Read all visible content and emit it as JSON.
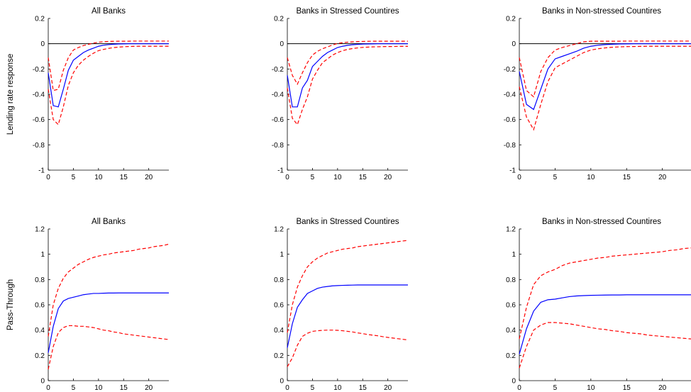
{
  "chart_data": [
    {
      "type": "line",
      "title": "All Banks",
      "ylabel": "Lending rate response",
      "xlim": [
        0,
        24
      ],
      "ylim": [
        -1,
        0.2
      ],
      "xticks": [
        0,
        5,
        10,
        15,
        20
      ],
      "yticks": [
        -1,
        -0.8,
        -0.6,
        -0.4,
        -0.2,
        0,
        0.2
      ],
      "zero_line": true,
      "x": [
        0,
        1,
        2,
        3,
        4,
        5,
        6,
        7,
        8,
        9,
        10,
        11,
        12,
        13,
        14,
        15,
        16,
        17,
        18,
        19,
        20,
        21,
        22,
        23,
        24
      ],
      "series": [
        {
          "values": [
            -0.23,
            -0.49,
            -0.5,
            -0.36,
            -0.21,
            -0.13,
            -0.1,
            -0.07,
            -0.05,
            -0.035,
            -0.02,
            -0.012,
            -0.007,
            -0.004,
            -0.002,
            -0.001,
            0,
            0,
            0,
            0,
            0,
            0,
            0,
            0,
            0
          ],
          "color": "#0000ff",
          "style": "solid"
        },
        {
          "values": [
            -0.11,
            -0.37,
            -0.36,
            -0.21,
            -0.11,
            -0.05,
            -0.03,
            -0.015,
            -0.005,
            0.005,
            0.012,
            0.016,
            0.018,
            0.019,
            0.02,
            0.02,
            0.02,
            0.021,
            0.021,
            0.021,
            0.021,
            0.021,
            0.021,
            0.021,
            0.021
          ],
          "color": "#ff0000",
          "style": "dashed"
        },
        {
          "values": [
            -0.36,
            -0.6,
            -0.64,
            -0.5,
            -0.33,
            -0.23,
            -0.17,
            -0.13,
            -0.1,
            -0.075,
            -0.055,
            -0.045,
            -0.037,
            -0.031,
            -0.027,
            -0.024,
            -0.022,
            -0.021,
            -0.02,
            -0.02,
            -0.02,
            -0.02,
            -0.02,
            -0.02,
            -0.02
          ],
          "color": "#ff0000",
          "style": "dashed"
        }
      ]
    },
    {
      "type": "line",
      "title": "Banks in Stressed Countires",
      "xlim": [
        0,
        24
      ],
      "ylim": [
        -1,
        0.2
      ],
      "xticks": [
        0,
        5,
        10,
        15,
        20
      ],
      "yticks": [
        -1,
        -0.8,
        -0.6,
        -0.4,
        -0.2,
        0,
        0.2
      ],
      "zero_line": true,
      "x": [
        0,
        1,
        2,
        3,
        4,
        5,
        6,
        7,
        8,
        9,
        10,
        11,
        12,
        13,
        14,
        15,
        16,
        17,
        18,
        19,
        20,
        21,
        22,
        23,
        24
      ],
      "series": [
        {
          "values": [
            -0.25,
            -0.5,
            -0.5,
            -0.35,
            -0.29,
            -0.18,
            -0.14,
            -0.1,
            -0.07,
            -0.05,
            -0.03,
            -0.02,
            -0.013,
            -0.008,
            -0.005,
            -0.003,
            -0.002,
            -0.001,
            0,
            0,
            0,
            0,
            0,
            0,
            0
          ],
          "color": "#0000ff",
          "style": "solid"
        },
        {
          "values": [
            -0.11,
            -0.25,
            -0.32,
            -0.23,
            -0.15,
            -0.09,
            -0.06,
            -0.04,
            -0.025,
            -0.01,
            0.002,
            0.008,
            0.012,
            0.015,
            0.017,
            0.018,
            0.019,
            0.02,
            0.02,
            0.02,
            0.02,
            0.02,
            0.02,
            0.02,
            0.02
          ],
          "color": "#ff0000",
          "style": "dashed"
        },
        {
          "values": [
            -0.35,
            -0.59,
            -0.64,
            -0.52,
            -0.42,
            -0.28,
            -0.21,
            -0.15,
            -0.12,
            -0.09,
            -0.07,
            -0.055,
            -0.045,
            -0.038,
            -0.033,
            -0.029,
            -0.027,
            -0.025,
            -0.024,
            -0.023,
            -0.022,
            -0.022,
            -0.021,
            -0.021,
            -0.021
          ],
          "color": "#ff0000",
          "style": "dashed"
        }
      ]
    },
    {
      "type": "line",
      "title": "Banks in Non-stressed Countires",
      "xlim": [
        0,
        24
      ],
      "ylim": [
        -1,
        0.2
      ],
      "xticks": [
        0,
        5,
        10,
        15,
        20
      ],
      "yticks": [
        -1,
        -0.8,
        -0.6,
        -0.4,
        -0.2,
        0,
        0.2
      ],
      "zero_line": true,
      "x": [
        0,
        1,
        2,
        3,
        4,
        5,
        6,
        7,
        8,
        9,
        10,
        11,
        12,
        13,
        14,
        15,
        16,
        17,
        18,
        19,
        20,
        21,
        22,
        23,
        24
      ],
      "series": [
        {
          "values": [
            -0.22,
            -0.48,
            -0.52,
            -0.36,
            -0.2,
            -0.12,
            -0.1,
            -0.08,
            -0.06,
            -0.035,
            -0.02,
            -0.012,
            -0.007,
            -0.004,
            -0.002,
            -0.001,
            0,
            0,
            0,
            0,
            0,
            0,
            0,
            0,
            0
          ],
          "color": "#0000ff",
          "style": "solid"
        },
        {
          "values": [
            -0.11,
            -0.37,
            -0.42,
            -0.22,
            -0.11,
            -0.05,
            -0.03,
            -0.015,
            0,
            0.015,
            0.02,
            0.02,
            0.02,
            0.02,
            0.02,
            0.021,
            0.021,
            0.021,
            0.021,
            0.021,
            0.021,
            0.021,
            0.021,
            0.021,
            0.021
          ],
          "color": "#ff0000",
          "style": "dashed"
        },
        {
          "values": [
            -0.34,
            -0.58,
            -0.68,
            -0.48,
            -0.3,
            -0.19,
            -0.16,
            -0.13,
            -0.1,
            -0.07,
            -0.05,
            -0.04,
            -0.033,
            -0.028,
            -0.025,
            -0.023,
            -0.022,
            -0.021,
            -0.02,
            -0.02,
            -0.02,
            -0.02,
            -0.02,
            -0.02,
            -0.02
          ],
          "color": "#ff0000",
          "style": "dashed"
        }
      ]
    },
    {
      "type": "line",
      "title": "All Banks",
      "ylabel": "Pass-Through",
      "xlim": [
        0,
        24
      ],
      "ylim": [
        0,
        1.2
      ],
      "xticks": [
        0,
        5,
        10,
        15,
        20
      ],
      "yticks": [
        0,
        0.2,
        0.4,
        0.6,
        0.8,
        1,
        1.2
      ],
      "zero_line": false,
      "x": [
        0,
        1,
        2,
        3,
        4,
        5,
        6,
        7,
        8,
        9,
        10,
        11,
        12,
        13,
        14,
        15,
        16,
        17,
        18,
        19,
        20,
        21,
        22,
        23,
        24
      ],
      "series": [
        {
          "values": [
            0.22,
            0.43,
            0.57,
            0.63,
            0.65,
            0.66,
            0.67,
            0.68,
            0.685,
            0.69,
            0.69,
            0.692,
            0.693,
            0.693,
            0.694,
            0.694,
            0.694,
            0.694,
            0.694,
            0.694,
            0.694,
            0.694,
            0.694,
            0.694,
            0.694
          ],
          "color": "#0000ff",
          "style": "solid"
        },
        {
          "values": [
            0.35,
            0.6,
            0.73,
            0.81,
            0.86,
            0.89,
            0.92,
            0.94,
            0.96,
            0.975,
            0.985,
            0.995,
            1.0,
            1.01,
            1.015,
            1.02,
            1.025,
            1.03,
            1.04,
            1.045,
            1.05,
            1.06,
            1.065,
            1.07,
            1.08
          ],
          "color": "#ff0000",
          "style": "dashed"
        },
        {
          "values": [
            0.09,
            0.27,
            0.38,
            0.42,
            0.435,
            0.435,
            0.43,
            0.43,
            0.425,
            0.42,
            0.41,
            0.4,
            0.395,
            0.385,
            0.38,
            0.37,
            0.365,
            0.36,
            0.355,
            0.35,
            0.345,
            0.34,
            0.335,
            0.33,
            0.325
          ],
          "color": "#ff0000",
          "style": "dashed"
        }
      ]
    },
    {
      "type": "line",
      "title": "Banks in Stressed Countires",
      "xlim": [
        0,
        24
      ],
      "ylim": [
        0,
        1.2
      ],
      "xticks": [
        0,
        5,
        10,
        15,
        20
      ],
      "yticks": [
        0,
        0.2,
        0.4,
        0.6,
        0.8,
        1,
        1.2
      ],
      "zero_line": false,
      "x": [
        0,
        1,
        2,
        3,
        4,
        5,
        6,
        7,
        8,
        9,
        10,
        11,
        12,
        13,
        14,
        15,
        16,
        17,
        18,
        19,
        20,
        21,
        22,
        23,
        24
      ],
      "series": [
        {
          "values": [
            0.26,
            0.45,
            0.58,
            0.64,
            0.69,
            0.71,
            0.73,
            0.74,
            0.745,
            0.75,
            0.752,
            0.754,
            0.755,
            0.756,
            0.757,
            0.757,
            0.757,
            0.757,
            0.757,
            0.757,
            0.757,
            0.757,
            0.757,
            0.757,
            0.757
          ],
          "color": "#0000ff",
          "style": "solid"
        },
        {
          "values": [
            0.38,
            0.6,
            0.74,
            0.83,
            0.9,
            0.94,
            0.97,
            0.99,
            1.01,
            1.02,
            1.03,
            1.04,
            1.045,
            1.05,
            1.06,
            1.065,
            1.07,
            1.075,
            1.08,
            1.085,
            1.09,
            1.095,
            1.1,
            1.105,
            1.11
          ],
          "color": "#ff0000",
          "style": "dashed"
        },
        {
          "values": [
            0.11,
            0.18,
            0.28,
            0.35,
            0.375,
            0.39,
            0.395,
            0.398,
            0.4,
            0.4,
            0.398,
            0.395,
            0.39,
            0.385,
            0.378,
            0.372,
            0.365,
            0.36,
            0.355,
            0.348,
            0.342,
            0.337,
            0.332,
            0.327,
            0.322
          ],
          "color": "#ff0000",
          "style": "dashed"
        }
      ]
    },
    {
      "type": "line",
      "title": "Banks in Non-stressed Countires",
      "xlim": [
        0,
        24
      ],
      "ylim": [
        0,
        1.2
      ],
      "xticks": [
        0,
        5,
        10,
        15,
        20
      ],
      "yticks": [
        0,
        0.2,
        0.4,
        0.6,
        0.8,
        1,
        1.2
      ],
      "zero_line": false,
      "x": [
        0,
        1,
        2,
        3,
        4,
        5,
        6,
        7,
        8,
        9,
        10,
        11,
        12,
        13,
        14,
        15,
        16,
        17,
        18,
        19,
        20,
        21,
        22,
        23,
        24
      ],
      "series": [
        {
          "values": [
            0.21,
            0.41,
            0.55,
            0.62,
            0.64,
            0.645,
            0.655,
            0.665,
            0.67,
            0.673,
            0.675,
            0.676,
            0.677,
            0.678,
            0.678,
            0.679,
            0.679,
            0.679,
            0.679,
            0.679,
            0.679,
            0.679,
            0.679,
            0.679,
            0.679
          ],
          "color": "#0000ff",
          "style": "solid"
        },
        {
          "values": [
            0.33,
            0.58,
            0.76,
            0.83,
            0.86,
            0.88,
            0.91,
            0.93,
            0.94,
            0.95,
            0.96,
            0.97,
            0.975,
            0.985,
            0.99,
            0.995,
            1.0,
            1.005,
            1.01,
            1.015,
            1.02,
            1.03,
            1.035,
            1.045,
            1.05
          ],
          "color": "#ff0000",
          "style": "dashed"
        },
        {
          "values": [
            0.1,
            0.27,
            0.4,
            0.44,
            0.46,
            0.46,
            0.455,
            0.45,
            0.44,
            0.43,
            0.42,
            0.41,
            0.405,
            0.395,
            0.39,
            0.38,
            0.375,
            0.37,
            0.36,
            0.355,
            0.35,
            0.345,
            0.34,
            0.335,
            0.33
          ],
          "color": "#ff0000",
          "style": "dashed"
        }
      ]
    }
  ]
}
